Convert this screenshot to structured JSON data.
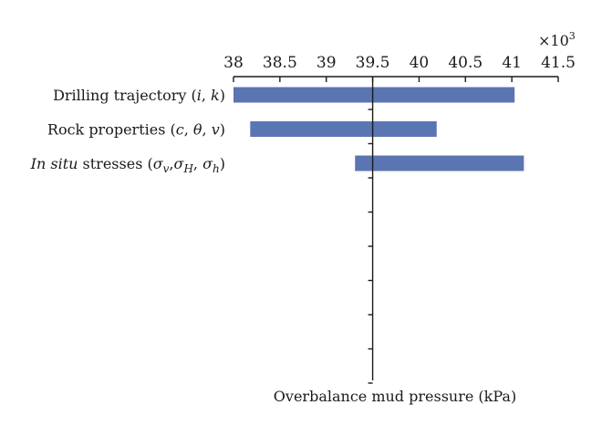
{
  "chart_data": {
    "type": "bar",
    "orientation": "horizontal",
    "categories": [
      "Drilling trajectory (i, k)",
      "Rock properties (c, θ, v)",
      "In situ stresses (σv,σH, σh)"
    ],
    "category_parts": [
      [
        {
          "t": "Drilling trajectory (",
          "i": false
        },
        {
          "t": "i",
          "i": true
        },
        {
          "t": ", ",
          "i": false
        },
        {
          "t": "k",
          "i": true
        },
        {
          "t": ")",
          "i": false
        }
      ],
      [
        {
          "t": "Rock properties (",
          "i": false
        },
        {
          "t": "c",
          "i": true
        },
        {
          "t": ", ",
          "i": false
        },
        {
          "t": "θ",
          "i": true
        },
        {
          "t": ", ",
          "i": false
        },
        {
          "t": "v",
          "i": true
        },
        {
          "t": ")",
          "i": false
        }
      ],
      [
        {
          "t": "In situ",
          "i": true
        },
        {
          "t": " stresses (",
          "i": false
        },
        {
          "t": "σ",
          "i": true
        },
        {
          "t": "v",
          "i": true,
          "sub": true
        },
        {
          "t": ",",
          "i": false
        },
        {
          "t": "σ",
          "i": true
        },
        {
          "t": "H",
          "i": true,
          "sub": true
        },
        {
          "t": ", ",
          "i": false
        },
        {
          "t": "σ",
          "i": true
        },
        {
          "t": "h",
          "i": true,
          "sub": true
        },
        {
          "t": ")",
          "i": false
        }
      ]
    ],
    "ranges": [
      [
        38.0,
        41.03
      ],
      [
        38.18,
        40.19
      ],
      [
        39.31,
        41.13
      ]
    ],
    "baseline": 39.5,
    "xlim": [
      38,
      41.5
    ],
    "xticks": [
      38,
      38.5,
      39,
      39.5,
      40,
      40.5,
      41,
      41.5
    ],
    "xtick_labels": [
      "38",
      "38.5",
      "39",
      "39.5",
      "40",
      "40.5",
      "41",
      "41.5"
    ],
    "x_multiplier": "×10",
    "x_multiplier_exp": "3",
    "xlabel": "Overbalance mud pressure (kPa)",
    "bar_color": "#5b75b3",
    "grid": false
  }
}
